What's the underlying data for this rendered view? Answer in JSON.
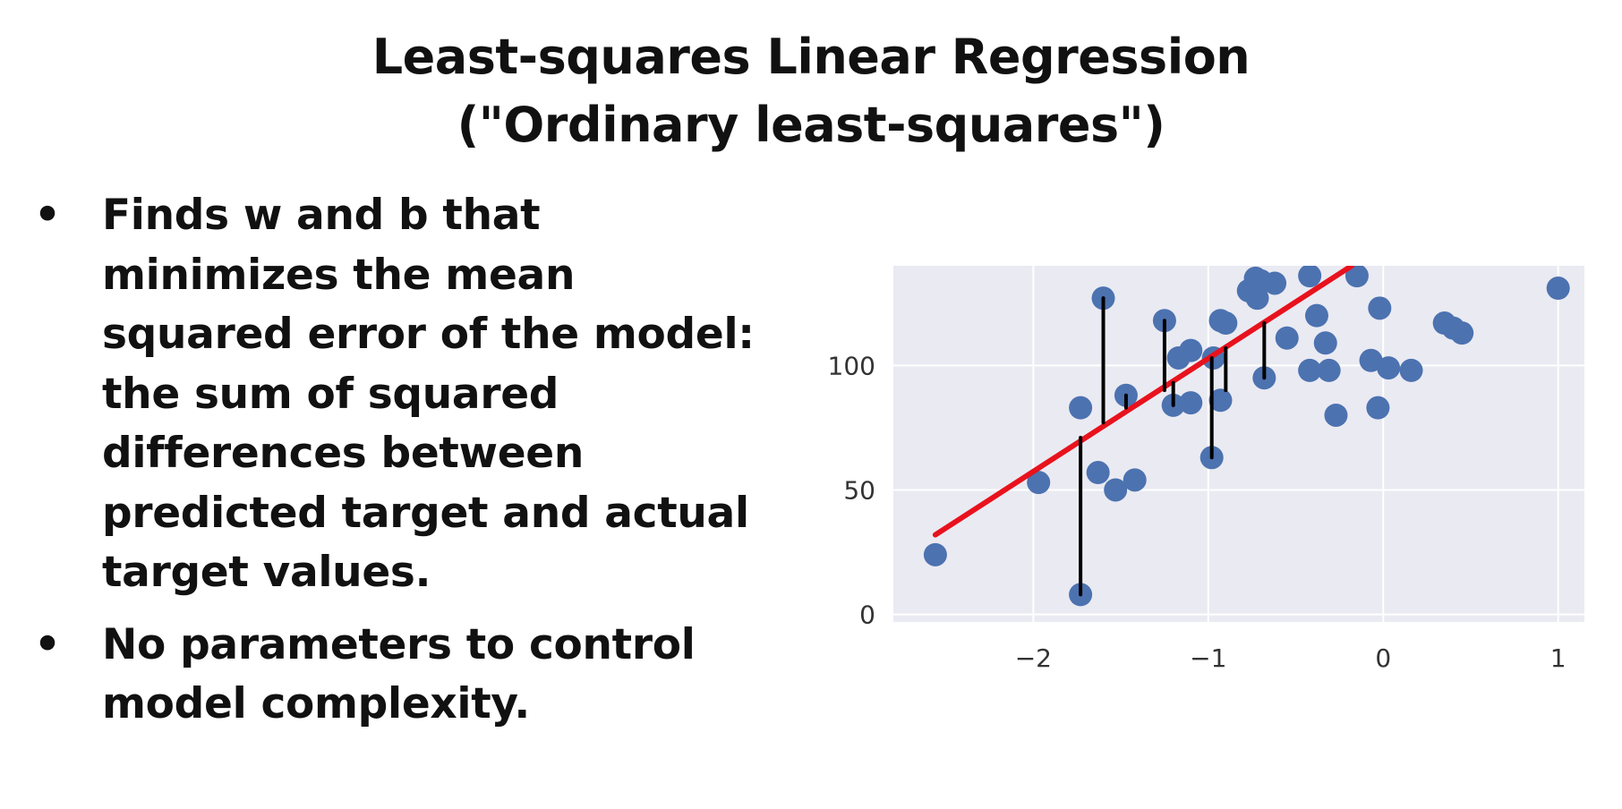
{
  "slide": {
    "title_line1": "Least-squares Linear Regression",
    "title_line2": "(\"Ordinary least-squares\")",
    "bullets": [
      {
        "lines": [
          "Finds w and b that",
          "minimizes the mean",
          "squared error of the model:",
          "the sum of squared",
          "differences between",
          "predicted target and actual",
          "target values."
        ]
      },
      {
        "lines": [
          "No parameters to control",
          "model complexity."
        ]
      }
    ]
  },
  "chart_data": {
    "type": "scatter",
    "xlim": [
      -2.8,
      1.15
    ],
    "ylim": [
      -3,
      140
    ],
    "x_ticks": [
      -2,
      -1,
      0,
      1
    ],
    "x_tick_labels": [
      "−2",
      "−1",
      "0",
      "1"
    ],
    "y_ticks": [
      0,
      50,
      100
    ],
    "y_tick_labels": [
      "0",
      "50",
      "100"
    ],
    "grid": true,
    "colors": {
      "background": "#eaeaf2",
      "points": "#4c72b0",
      "fit_line": "#e8121d",
      "residuals": "#000000",
      "grid": "#ffffff"
    },
    "points": [
      {
        "x": -2.56,
        "y": 24
      },
      {
        "x": -1.97,
        "y": 53
      },
      {
        "x": -1.73,
        "y": 8
      },
      {
        "x": -1.73,
        "y": 83
      },
      {
        "x": -1.63,
        "y": 57
      },
      {
        "x": -1.6,
        "y": 127
      },
      {
        "x": -1.53,
        "y": 50
      },
      {
        "x": -1.47,
        "y": 88
      },
      {
        "x": -1.42,
        "y": 54
      },
      {
        "x": -1.25,
        "y": 118
      },
      {
        "x": -1.2,
        "y": 84
      },
      {
        "x": -1.17,
        "y": 103
      },
      {
        "x": -1.1,
        "y": 85
      },
      {
        "x": -1.1,
        "y": 106
      },
      {
        "x": -0.98,
        "y": 63
      },
      {
        "x": -0.97,
        "y": 103
      },
      {
        "x": -0.93,
        "y": 86
      },
      {
        "x": -0.93,
        "y": 118
      },
      {
        "x": -0.9,
        "y": 117
      },
      {
        "x": -0.77,
        "y": 130
      },
      {
        "x": -0.73,
        "y": 135
      },
      {
        "x": -0.72,
        "y": 127
      },
      {
        "x": -0.7,
        "y": 134
      },
      {
        "x": -0.68,
        "y": 95
      },
      {
        "x": -0.62,
        "y": 133
      },
      {
        "x": -0.55,
        "y": 111
      },
      {
        "x": -0.42,
        "y": 98
      },
      {
        "x": -0.42,
        "y": 136
      },
      {
        "x": -0.38,
        "y": 120
      },
      {
        "x": -0.33,
        "y": 109
      },
      {
        "x": -0.31,
        "y": 98
      },
      {
        "x": -0.27,
        "y": 80
      },
      {
        "x": -0.15,
        "y": 136
      },
      {
        "x": -0.07,
        "y": 102
      },
      {
        "x": -0.03,
        "y": 83
      },
      {
        "x": -0.02,
        "y": 123
      },
      {
        "x": 0.03,
        "y": 99
      },
      {
        "x": 0.16,
        "y": 98
      },
      {
        "x": 0.35,
        "y": 117
      },
      {
        "x": 0.4,
        "y": 115
      },
      {
        "x": 0.45,
        "y": 113
      },
      {
        "x": 1.0,
        "y": 131
      }
    ],
    "fit_line": {
      "x1": -2.56,
      "y1": 32,
      "x2": -0.18,
      "y2": 140
    },
    "residuals": [
      {
        "x": -1.73,
        "y_from": 8,
        "y_to": 71
      },
      {
        "x": -1.6,
        "y_from": 77,
        "y_to": 127
      },
      {
        "x": -1.47,
        "y_from": 83,
        "y_to": 88
      },
      {
        "x": -1.25,
        "y_from": 90,
        "y_to": 118
      },
      {
        "x": -1.2,
        "y_from": 84,
        "y_to": 93
      },
      {
        "x": -0.98,
        "y_from": 63,
        "y_to": 103
      },
      {
        "x": -0.9,
        "y_from": 90,
        "y_to": 107
      },
      {
        "x": -0.68,
        "y_from": 95,
        "y_to": 117
      }
    ]
  }
}
